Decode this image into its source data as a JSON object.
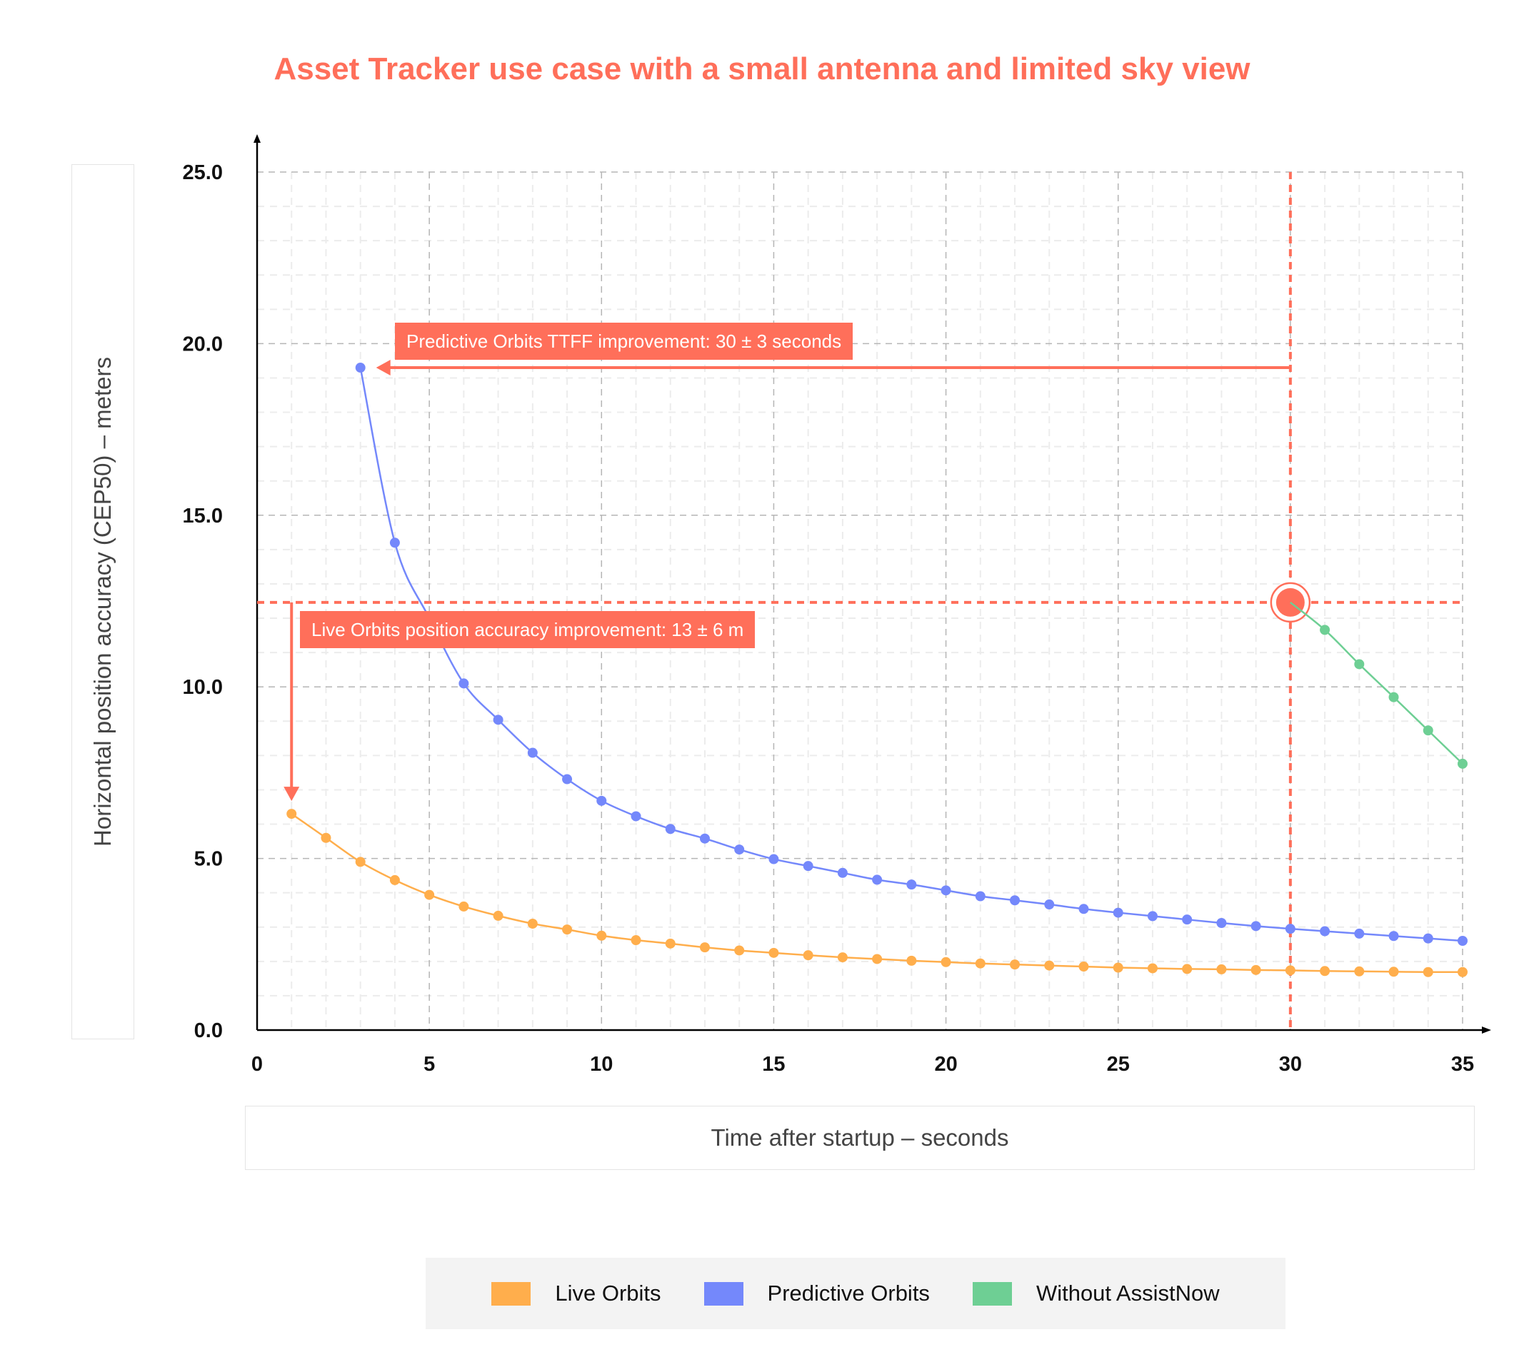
{
  "title": "Asset Tracker use case with a small antenna and limited sky view",
  "colors": {
    "accent": "#ff6f5a",
    "live": "#ffae4c",
    "predictive": "#7488fb",
    "without": "#6ecf94",
    "grid": "#cfcfcf",
    "legend_bg": "#f3f3f3"
  },
  "annotations": {
    "ttff": "Predictive Orbits TTFF improvement: 30 ± 3 seconds",
    "accuracy": "Live Orbits position accuracy improvement: 13 ± 6 m"
  },
  "legend": [
    {
      "label": "Live Orbits",
      "color": "#ffae4c"
    },
    {
      "label": "Predictive Orbits",
      "color": "#7488fb"
    },
    {
      "label": "Without AssistNow",
      "color": "#6ecf94"
    }
  ],
  "chart_data": {
    "type": "line",
    "title": "Asset Tracker use case with a small antenna and limited sky view",
    "xlabel": "Time after startup – seconds",
    "ylabel": "Horizontal position accuracy (CEP50) – meters",
    "xlim": [
      0,
      35
    ],
    "ylim": [
      0,
      25
    ],
    "xticks": [
      "0",
      "5",
      "10",
      "15",
      "20",
      "25",
      "30",
      "35"
    ],
    "yticks": [
      "0.0",
      "5.0",
      "10.0",
      "15.0",
      "20.0",
      "25.0"
    ],
    "grid": true,
    "legend_position": "bottom",
    "series": [
      {
        "name": "Live Orbits",
        "color": "#ffae4c",
        "x": [
          1,
          2,
          3,
          4,
          5,
          6,
          7,
          8,
          9,
          10,
          11,
          12,
          13,
          14,
          15,
          16,
          17,
          18,
          19,
          20,
          21,
          22,
          23,
          24,
          25,
          26,
          27,
          28,
          29,
          30,
          31,
          32,
          33,
          34,
          35
        ],
        "values": [
          6.3,
          5.6,
          4.9,
          4.37,
          3.94,
          3.6,
          3.33,
          3.1,
          2.93,
          2.75,
          2.62,
          2.52,
          2.41,
          2.32,
          2.25,
          2.18,
          2.12,
          2.07,
          2.02,
          1.98,
          1.94,
          1.91,
          1.88,
          1.85,
          1.82,
          1.8,
          1.78,
          1.77,
          1.75,
          1.74,
          1.72,
          1.71,
          1.7,
          1.69,
          1.69
        ]
      },
      {
        "name": "Predictive Orbits",
        "color": "#7488fb",
        "x": [
          3,
          4,
          5,
          6,
          7,
          8,
          9,
          10,
          11,
          12,
          13,
          14,
          15,
          16,
          17,
          18,
          19,
          20,
          21,
          22,
          23,
          24,
          25,
          26,
          27,
          28,
          29,
          30,
          31,
          32,
          33,
          34,
          35
        ],
        "values": [
          19.3,
          14.2,
          12.0,
          10.1,
          9.04,
          8.08,
          7.31,
          6.68,
          6.23,
          5.86,
          5.58,
          5.26,
          4.98,
          4.78,
          4.58,
          4.38,
          4.24,
          4.07,
          3.9,
          3.78,
          3.66,
          3.53,
          3.42,
          3.32,
          3.22,
          3.12,
          3.03,
          2.95,
          2.88,
          2.81,
          2.74,
          2.67,
          2.6
        ]
      },
      {
        "name": "Without AssistNow",
        "color": "#6ecf94",
        "x": [
          30,
          31,
          32,
          33,
          34,
          35
        ],
        "values": [
          12.46,
          11.66,
          10.66,
          9.7,
          8.73,
          7.76
        ]
      }
    ],
    "annotations": [
      {
        "text": "Predictive Orbits TTFF improvement: 30 ± 3 seconds",
        "arrow_from": [
          30,
          19.3
        ],
        "arrow_to": [
          3,
          19.3
        ]
      },
      {
        "text": "Live Orbits position accuracy improvement: 13 ± 6 m",
        "arrow_from": [
          1,
          12.46
        ],
        "arrow_to": [
          1,
          6.3
        ]
      }
    ],
    "reference_lines": {
      "vertical_x": 30,
      "horizontal_y": 12.46
    },
    "highlight_point": [
      30,
      12.46
    ]
  }
}
